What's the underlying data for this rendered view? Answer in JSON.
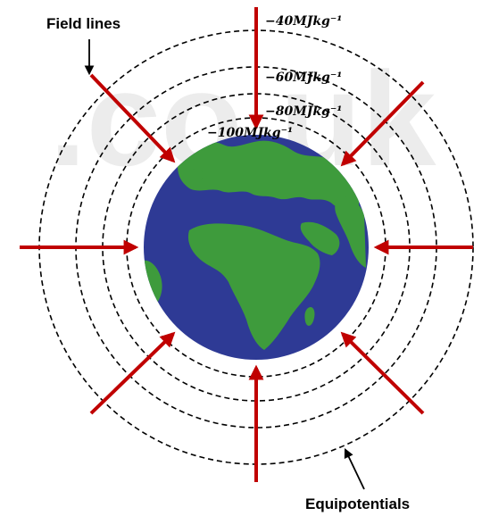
{
  "watermark": ".co.uk",
  "labels": {
    "field_lines": "Field lines",
    "equipotentials": "Equipotentials"
  },
  "equipotential_values": [
    "−40MJkg⁻¹",
    "−60MJkg⁻¹",
    "−80MJkg⁻¹",
    "−100MJkg⁻¹"
  ],
  "colors": {
    "field_line": "#c00000",
    "ocean": "#2e3a95",
    "land": "#3e9b3c",
    "equipotential": "#000000"
  },
  "icons": {
    "planet": "earth-globe-icon"
  }
}
